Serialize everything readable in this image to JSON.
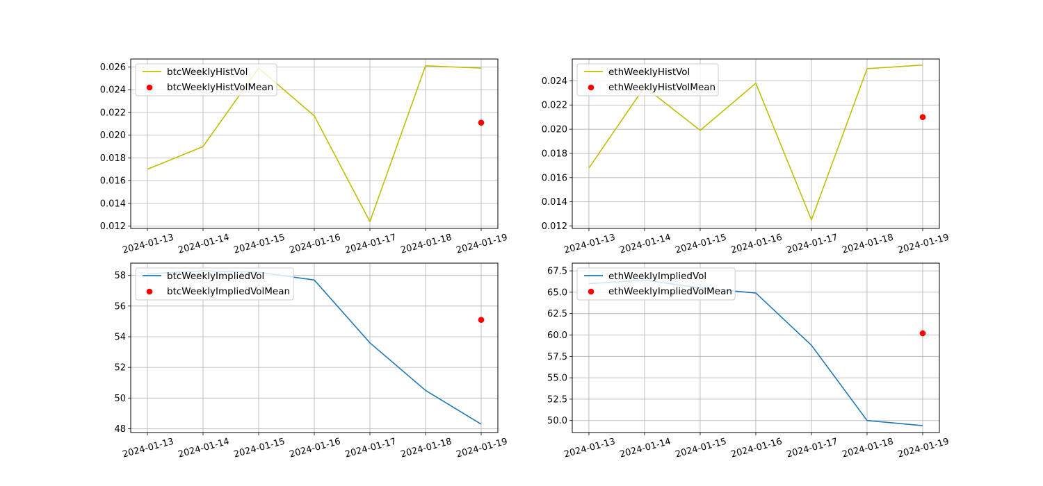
{
  "figure": {
    "background": "#ffffff",
    "grid": true
  },
  "chart_data": [
    {
      "type": "line",
      "x": [
        "2024-01-13",
        "2024-01-14",
        "2024-01-15",
        "2024-01-16",
        "2024-01-17",
        "2024-01-18",
        "2024-01-19"
      ],
      "ylim": [
        0.0118,
        0.0267
      ],
      "yticks": [
        0.012,
        0.014,
        0.016,
        0.018,
        0.02,
        0.022,
        0.024,
        0.026
      ],
      "ytick_labels": [
        "0.012",
        "0.014",
        "0.016",
        "0.018",
        "0.020",
        "0.022",
        "0.024",
        "0.026"
      ],
      "series": [
        {
          "name": "btcWeeklyHistVol",
          "kind": "line",
          "color": "#bfbf00",
          "values": [
            0.017,
            0.019,
            0.0259,
            0.0217,
            0.0124,
            0.0261,
            0.0259
          ]
        },
        {
          "name": "btcWeeklyHistVolMean",
          "kind": "scatter",
          "color": "#ff0000",
          "x": [
            "2024-01-19"
          ],
          "values": [
            0.0211
          ]
        }
      ],
      "legend": "upper-left"
    },
    {
      "type": "line",
      "x": [
        "2024-01-13",
        "2024-01-14",
        "2024-01-15",
        "2024-01-16",
        "2024-01-17",
        "2024-01-18",
        "2024-01-19"
      ],
      "ylim": [
        0.0118,
        0.0258
      ],
      "yticks": [
        0.012,
        0.014,
        0.016,
        0.018,
        0.02,
        0.022,
        0.024
      ],
      "ytick_labels": [
        "0.012",
        "0.014",
        "0.016",
        "0.018",
        "0.020",
        "0.022",
        "0.024"
      ],
      "series": [
        {
          "name": "ethWeeklyHistVol",
          "kind": "line",
          "color": "#bfbf00",
          "values": [
            0.0168,
            0.0235,
            0.0199,
            0.0238,
            0.0125,
            0.025,
            0.0253
          ]
        },
        {
          "name": "ethWeeklyHistVolMean",
          "kind": "scatter",
          "color": "#ff0000",
          "x": [
            "2024-01-19"
          ],
          "values": [
            0.021
          ]
        }
      ],
      "legend": "upper-left"
    },
    {
      "type": "line",
      "x": [
        "2024-01-13",
        "2024-01-14",
        "2024-01-15",
        "2024-01-16",
        "2024-01-17",
        "2024-01-18",
        "2024-01-19"
      ],
      "ylim": [
        47.75,
        58.8
      ],
      "yticks": [
        48,
        50,
        52,
        54,
        56,
        58
      ],
      "ytick_labels": [
        "48",
        "50",
        "52",
        "54",
        "56",
        "58"
      ],
      "series": [
        {
          "name": "btcWeeklyImpliedVol",
          "kind": "line",
          "color": "#1f77b4",
          "values": [
            58.1,
            58.3,
            58.2,
            57.7,
            53.6,
            50.5,
            48.3
          ]
        },
        {
          "name": "btcWeeklyImpliedVolMean",
          "kind": "scatter",
          "color": "#ff0000",
          "x": [
            "2024-01-19"
          ],
          "values": [
            55.1
          ]
        }
      ],
      "legend": "upper-left"
    },
    {
      "type": "line",
      "x": [
        "2024-01-13",
        "2024-01-14",
        "2024-01-15",
        "2024-01-16",
        "2024-01-17",
        "2024-01-18",
        "2024-01-19"
      ],
      "ylim": [
        48.6,
        68.4
      ],
      "yticks": [
        50.0,
        52.5,
        55.0,
        57.5,
        60.0,
        62.5,
        65.0,
        67.5
      ],
      "ytick_labels": [
        "50.0",
        "52.5",
        "55.0",
        "57.5",
        "60.0",
        "62.5",
        "65.0",
        "67.5"
      ],
      "series": [
        {
          "name": "ethWeeklyImpliedVol",
          "kind": "line",
          "color": "#1f77b4",
          "values": [
            66.0,
            66.4,
            65.5,
            64.9,
            58.8,
            50.0,
            49.4
          ]
        },
        {
          "name": "ethWeeklyImpliedVolMean",
          "kind": "scatter",
          "color": "#ff0000",
          "x": [
            "2024-01-19"
          ],
          "values": [
            60.2
          ]
        }
      ],
      "legend": "upper-left"
    }
  ]
}
